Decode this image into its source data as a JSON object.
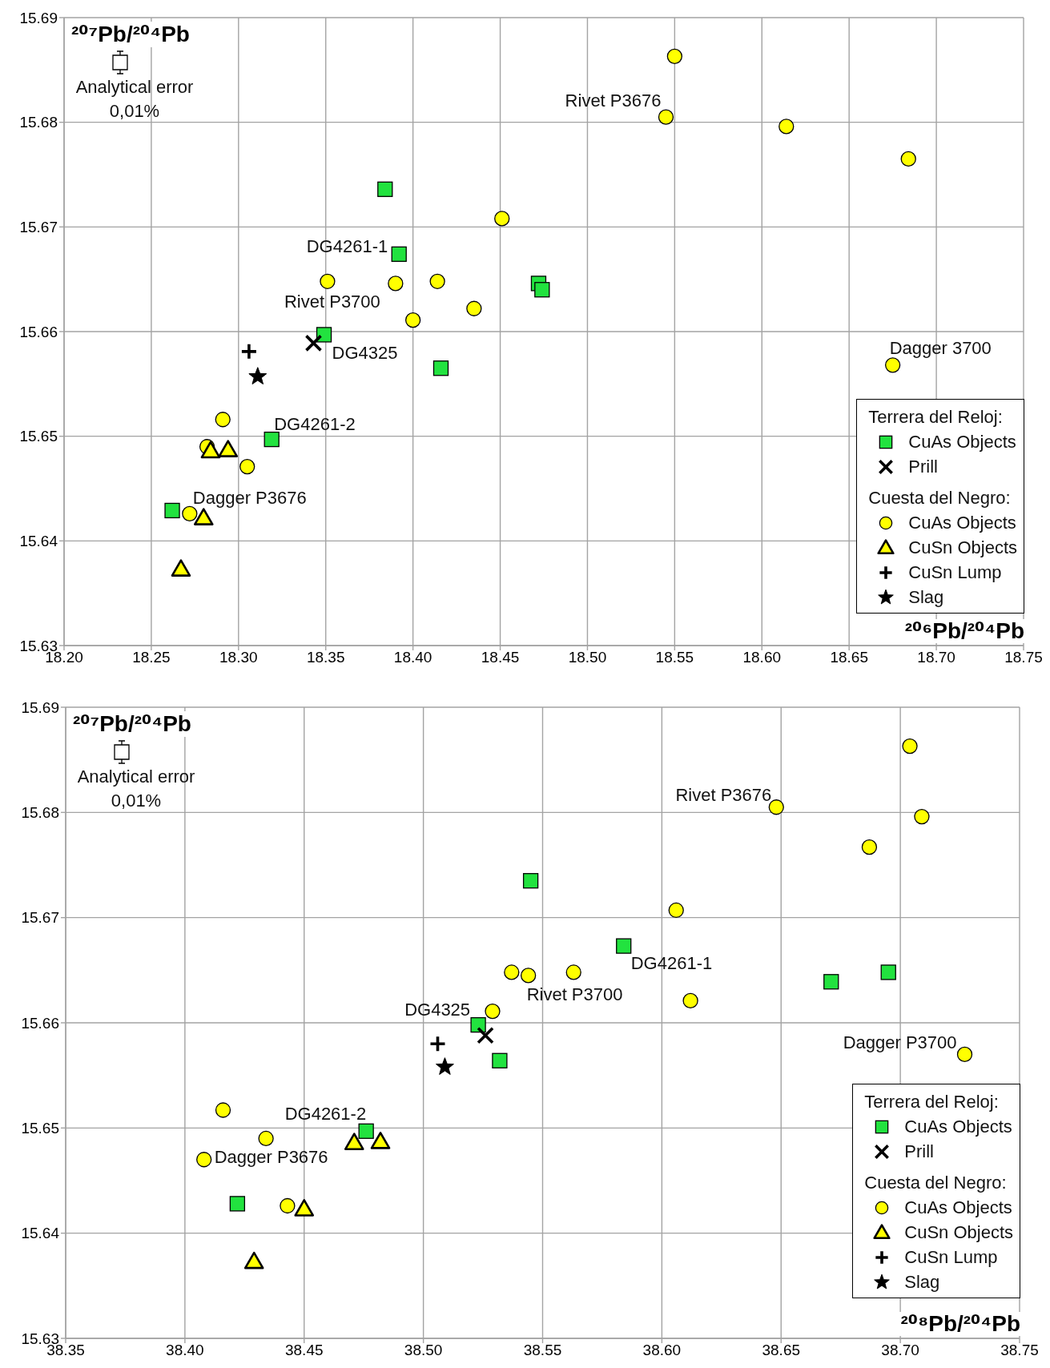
{
  "chart_data": [
    {
      "type": "scatter",
      "xlabel": "²⁰⁶Pb/²⁰⁴Pb",
      "ylabel": "²⁰⁷Pb/²⁰⁴Pb",
      "legend_title": "Terrera del Reloj:",
      "xlim": [
        18.2,
        18.75
      ],
      "xticks": [
        {
          "value": 18.2,
          "label": "18.20"
        },
        18.25,
        {
          "value": 18.3,
          "label": "18.30"
        },
        18.35,
        {
          "value": 18.4,
          "label": "18.40"
        },
        18.45,
        {
          "value": 18.5,
          "label": "18.50"
        },
        18.55,
        {
          "value": 18.6,
          "label": "18.60"
        },
        18.65,
        {
          "value": 18.7,
          "label": "18.70"
        },
        18.75
      ],
      "ylim": [
        15.63,
        15.69
      ],
      "yticks": [
        15.63,
        15.64,
        15.65,
        15.66,
        15.67,
        15.68,
        15.69
      ],
      "grid": true,
      "legend": "bottom right",
      "series": [
        {
          "name": "CuAs Objects",
          "color": "#22e23f",
          "marker": "square",
          "x": [
            18.384,
            18.392,
            18.349,
            18.416,
            18.319,
            18.262,
            18.472,
            18.474
          ],
          "values": [
            15.6736,
            15.6674,
            15.6597,
            15.6565,
            15.6497,
            15.6429,
            15.6646,
            15.664
          ]
        },
        {
          "name": "Prill",
          "color": "#000000",
          "marker": "x",
          "x": [
            18.343
          ],
          "values": [
            15.6589
          ]
        },
        {
          "name": "CuAs Objects",
          "color": "#ffff00",
          "marker": "circle",
          "x": [
            18.451,
            18.351,
            18.39,
            18.414,
            18.435,
            18.4,
            18.291,
            18.282,
            18.305,
            18.272,
            18.55,
            18.545,
            18.614,
            18.684,
            18.675
          ],
          "values": [
            15.6708,
            15.6648,
            15.6646,
            15.6648,
            15.6622,
            15.6611,
            15.6516,
            15.649,
            15.6471,
            15.6426,
            15.6863,
            15.6805,
            15.6796,
            15.6765,
            15.6568
          ]
        },
        {
          "name": "CuSn Objects",
          "color": "#ffff00",
          "marker": "triangle",
          "x": [
            18.284,
            18.294,
            18.28,
            18.267
          ],
          "values": [
            15.6486,
            15.6487,
            15.6422,
            15.6373
          ]
        },
        {
          "name": "CuSn Lump",
          "color": "#000000",
          "marker": "cross",
          "x": [
            18.306
          ],
          "values": [
            15.6581
          ]
        },
        {
          "name": "Slag",
          "color": "#000000",
          "marker": "star",
          "x": [
            18.311
          ],
          "values": [
            15.6557
          ]
        }
      ],
      "annotations": [
        "Analytical error 0,01%",
        "Cuesta del Negro:",
        {
          "text": "Rivet P3676",
          "x": 18.545,
          "y": 15.6805
        },
        {
          "text": "DG4261-1",
          "x": 18.392,
          "y": 15.6674
        },
        {
          "text": "Rivet P3700",
          "x": 18.351,
          "y": 15.6648
        },
        {
          "text": "DG4325",
          "x": 18.349,
          "y": 15.6597
        },
        {
          "text": "DG4261-2",
          "x": 18.319,
          "y": 15.6497
        },
        {
          "text": "Dagger P3676",
          "x": 18.272,
          "y": 15.6426
        },
        {
          "text": "Dagger 3700",
          "x": 18.675,
          "y": 15.6568
        }
      ]
    },
    {
      "type": "scatter",
      "xlabel": "²⁰⁸Pb/²⁰⁴Pb",
      "ylabel": "²⁰⁷Pb/²⁰⁴Pb",
      "legend_title": "Terrera del Reloj:",
      "xlim": [
        38.35,
        38.75
      ],
      "xticks": [
        38.35,
        {
          "value": 38.4,
          "label": "38.40"
        },
        38.45,
        {
          "value": 38.5,
          "label": "38.50"
        },
        38.55,
        {
          "value": 38.6,
          "label": "38.60"
        },
        38.65,
        {
          "value": 38.7,
          "label": "38.70"
        },
        38.75
      ],
      "ylim": [
        15.63,
        15.69
      ],
      "yticks": [
        15.63,
        15.64,
        15.65,
        15.66,
        15.67,
        15.68,
        15.69
      ],
      "grid": true,
      "legend": "bottom right",
      "series": [
        {
          "name": "CuAs Objects",
          "color": "#22e23f",
          "marker": "square",
          "x": [
            38.545,
            38.523,
            38.532,
            38.476,
            38.422,
            38.584,
            38.671,
            38.695
          ],
          "values": [
            15.6735,
            15.6598,
            15.6564,
            15.6497,
            15.6428,
            15.6673,
            15.6639,
            15.6648
          ]
        },
        {
          "name": "Prill",
          "color": "#000000",
          "marker": "x",
          "x": [
            38.526
          ],
          "values": [
            15.6588
          ]
        },
        {
          "name": "CuAs Objects",
          "color": "#ffff00",
          "marker": "circle",
          "x": [
            38.537,
            38.544,
            38.529,
            38.416,
            38.434,
            38.408,
            38.443,
            38.704,
            38.648,
            38.709,
            38.687,
            38.606,
            38.563,
            38.612,
            38.727
          ],
          "values": [
            15.6648,
            15.6645,
            15.6611,
            15.6517,
            15.649,
            15.647,
            15.6426,
            15.6863,
            15.6805,
            15.6796,
            15.6767,
            15.6707,
            15.6648,
            15.6621,
            15.657
          ]
        },
        {
          "name": "CuSn Objects",
          "color": "#ffff00",
          "marker": "triangle",
          "x": [
            38.471,
            38.482,
            38.45,
            38.429
          ],
          "values": [
            15.6486,
            15.6487,
            15.6423,
            15.6373
          ]
        },
        {
          "name": "CuSn Lump",
          "color": "#000000",
          "marker": "cross",
          "x": [
            38.506
          ],
          "values": [
            15.658
          ]
        },
        {
          "name": "Slag",
          "color": "#000000",
          "marker": "star",
          "x": [
            38.509
          ],
          "values": [
            15.6558
          ]
        }
      ],
      "annotations": [
        "Analytical error 0,01%",
        "Cuesta del Negro:",
        {
          "text": "Rivet P3676",
          "x": 38.648,
          "y": 15.6805
        },
        {
          "text": "DG4261-1",
          "x": 38.584,
          "y": 15.6673
        },
        {
          "text": "Rivet P3700",
          "x": 38.544,
          "y": 15.6645
        },
        {
          "text": "DG4325",
          "x": 38.523,
          "y": 15.6598
        },
        {
          "text": "DG4261-2",
          "x": 38.476,
          "y": 15.6497
        },
        {
          "text": "Dagger P3676",
          "x": 38.408,
          "y": 15.647
        },
        {
          "text": "Dagger P3700",
          "x": 38.727,
          "y": 15.657
        }
      ]
    }
  ]
}
